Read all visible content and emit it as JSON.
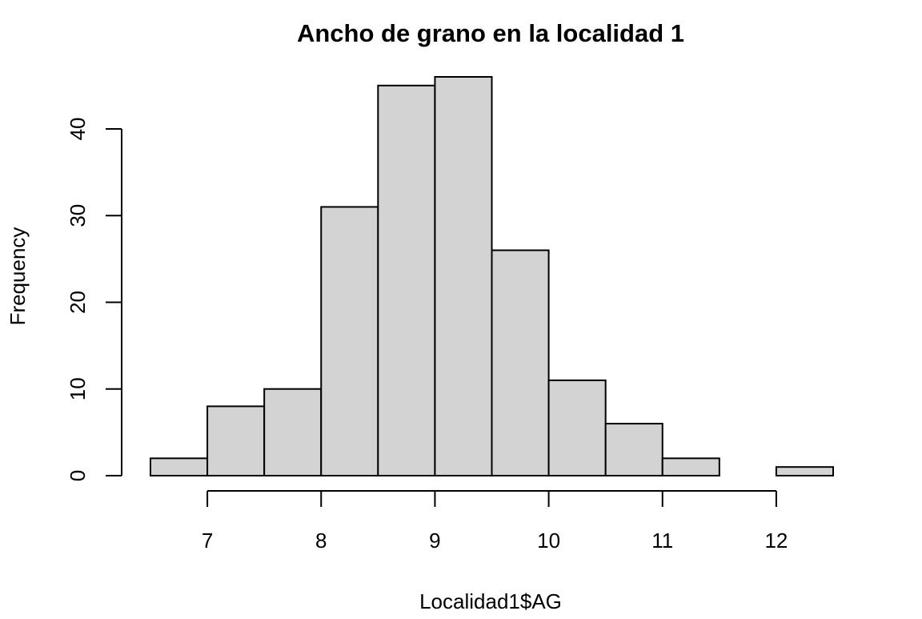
{
  "chart_data": {
    "type": "bar",
    "subtype": "histogram",
    "title": "Ancho de grano en la localidad 1",
    "xlabel": "Localidad1$AG",
    "ylabel": "Frequency",
    "bin_edges": [
      6.5,
      7.0,
      7.5,
      8.0,
      8.5,
      9.0,
      9.5,
      10.0,
      10.5,
      11.0,
      11.5,
      12.0,
      12.5
    ],
    "values": [
      2,
      8,
      10,
      31,
      45,
      46,
      26,
      11,
      6,
      2,
      0,
      1
    ],
    "xlim": [
      6.5,
      12.5
    ],
    "ylim": [
      0,
      46
    ],
    "x_ticks": [
      7,
      8,
      9,
      10,
      11,
      12
    ],
    "x_tick_labels": [
      "7",
      "8",
      "9",
      "10",
      "11",
      "12"
    ],
    "y_ticks": [
      0,
      10,
      20,
      30,
      40
    ],
    "y_tick_labels": [
      "0",
      "10",
      "20",
      "30",
      "40"
    ],
    "bar_color": "#d3d3d3",
    "grid": false,
    "legend": "none"
  }
}
